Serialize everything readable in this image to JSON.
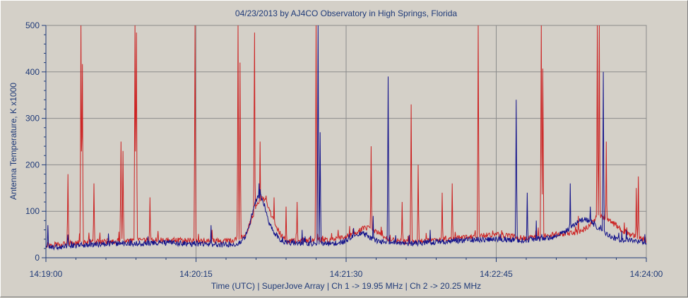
{
  "chart_data": {
    "type": "line",
    "title": "04/23/2013  by  AJ4CO Observatory  in  High Springs, Florida",
    "xlabel": "Time (UTC)  |  SuperJove Array  |  Ch 1 -> 19.95 MHz  |  Ch 2 -> 20.25 MHz",
    "ylabel": "Antenna Temperature, K x1000",
    "x_ticks": [
      "14:19:00",
      "14:20:15",
      "14:21:30",
      "14:22:45",
      "14:24:00"
    ],
    "x_range_seconds": [
      0,
      300
    ],
    "ylim": [
      0,
      500
    ],
    "y_ticks": [
      0,
      100,
      200,
      300,
      400,
      500
    ],
    "grid": true,
    "series": [
      {
        "name": "Ch 1",
        "color": "#cc2222",
        "baseline": [
          [
            0,
            28
          ],
          [
            30,
            35
          ],
          [
            60,
            38
          ],
          [
            90,
            36
          ],
          [
            100,
            38
          ],
          [
            105,
            40
          ],
          [
            110,
            50
          ],
          [
            115,
            52
          ],
          [
            120,
            36
          ],
          [
            135,
            38
          ],
          [
            150,
            40
          ],
          [
            165,
            38
          ],
          [
            180,
            34
          ],
          [
            195,
            38
          ],
          [
            210,
            45
          ],
          [
            225,
            50
          ],
          [
            240,
            42
          ],
          [
            255,
            50
          ],
          [
            270,
            55
          ],
          [
            285,
            60
          ],
          [
            300,
            38
          ]
        ],
        "bumps": [
          [
            107.5,
            6,
            82
          ],
          [
            160.5,
            8,
            25
          ],
          [
            277.5,
            7,
            30
          ]
        ],
        "spikes": [
          [
            11.0,
            180
          ],
          [
            17.5,
            500
          ],
          [
            18.2,
            430
          ],
          [
            24.0,
            160
          ],
          [
            37.5,
            250
          ],
          [
            38.5,
            230
          ],
          [
            44.5,
            500
          ],
          [
            45.2,
            500
          ],
          [
            52.0,
            130
          ],
          [
            67.0,
            40
          ],
          [
            74.5,
            500
          ],
          [
            83.0,
            60
          ],
          [
            96.0,
            500
          ],
          [
            97.0,
            420
          ],
          [
            104.2,
            500
          ],
          [
            107.0,
            250
          ],
          [
            110.0,
            80
          ],
          [
            114.0,
            130
          ],
          [
            120.0,
            110
          ],
          [
            125.5,
            120
          ],
          [
            135.0,
            500
          ],
          [
            146.0,
            60
          ],
          [
            162.5,
            240
          ],
          [
            178.0,
            120
          ],
          [
            182.5,
            330
          ],
          [
            186.0,
            200
          ],
          [
            198.0,
            140
          ],
          [
            203.0,
            160
          ],
          [
            216.0,
            500
          ],
          [
            231.0,
            50
          ],
          [
            247.5,
            500
          ],
          [
            248.3,
            420
          ],
          [
            266.0,
            90
          ],
          [
            275.5,
            500
          ],
          [
            276.5,
            500
          ],
          [
            280.0,
            250
          ],
          [
            295.0,
            150
          ],
          [
            296.0,
            175
          ]
        ]
      },
      {
        "name": "Ch 2",
        "color": "#11118a",
        "baseline": [
          [
            0,
            22
          ],
          [
            30,
            30
          ],
          [
            60,
            32
          ],
          [
            90,
            28
          ],
          [
            100,
            32
          ],
          [
            105,
            36
          ],
          [
            110,
            42
          ],
          [
            115,
            44
          ],
          [
            120,
            32
          ],
          [
            135,
            30
          ],
          [
            150,
            32
          ],
          [
            165,
            34
          ],
          [
            180,
            30
          ],
          [
            195,
            34
          ],
          [
            210,
            38
          ],
          [
            225,
            40
          ],
          [
            240,
            38
          ],
          [
            255,
            44
          ],
          [
            270,
            55
          ],
          [
            285,
            40
          ],
          [
            300,
            34
          ]
        ],
        "bumps": [
          [
            106.5,
            5,
            95
          ],
          [
            157,
            6,
            20
          ],
          [
            269,
            9,
            28
          ]
        ],
        "spikes": [
          [
            1.0,
            70
          ],
          [
            11.0,
            50
          ],
          [
            22.0,
            40
          ],
          [
            42.0,
            40
          ],
          [
            82.5,
            70
          ],
          [
            106.5,
            160
          ],
          [
            123.5,
            40
          ],
          [
            128.0,
            60
          ],
          [
            136.0,
            500
          ],
          [
            137.0,
            270
          ],
          [
            163.5,
            90
          ],
          [
            171.0,
            390
          ],
          [
            192.0,
            60
          ],
          [
            235.0,
            340
          ],
          [
            240.5,
            140
          ],
          [
            245.0,
            80
          ],
          [
            262.0,
            160
          ],
          [
            272.0,
            110
          ],
          [
            274.0,
            80
          ],
          [
            278.5,
            400
          ],
          [
            290.0,
            60
          ]
        ]
      }
    ]
  }
}
